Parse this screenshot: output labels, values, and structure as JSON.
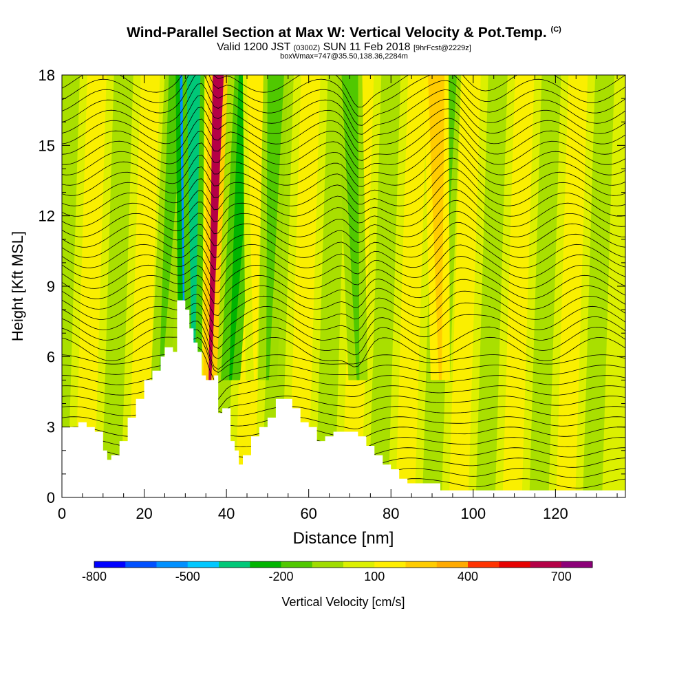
{
  "header": {
    "title": "Wind-Parallel Section at Max W: Vertical Velocity & Pot.Temp.",
    "copyright": "(C)",
    "valid_prefix": "Valid 1200 JST",
    "valid_utc": "(0300Z)",
    "valid_date": "SUN 11 Feb 2018",
    "forecast_info": "[9hrFcst@2229z]",
    "box_info": "boxWmax=747@35.50,138.36,2284m"
  },
  "chart_data": {
    "type": "heatmap",
    "title": "Wind-Parallel Section at Max W: Vertical Velocity & Pot.Temp.",
    "xlabel": "Distance [nm]",
    "ylabel": "Height [Kft MSL]",
    "xlim": [
      0,
      137
    ],
    "ylim": [
      0,
      18
    ],
    "xticks": [
      0,
      20,
      40,
      60,
      80,
      100,
      120
    ],
    "yticks": [
      0,
      3,
      6,
      9,
      12,
      15,
      18
    ],
    "colorbar": {
      "label": "Vertical Velocity [cm/s]",
      "tick_labels": [
        "-800",
        "-500",
        "-200",
        "100",
        "400",
        "700"
      ],
      "tick_values": [
        -800,
        -500,
        -200,
        100,
        400,
        700
      ],
      "range": [
        -800,
        800
      ],
      "step": 100,
      "colors": [
        "#0000ff",
        "#0050ff",
        "#0090ff",
        "#00c8ff",
        "#00e6c8",
        "#00c878",
        "#00b400",
        "#50c800",
        "#a0dc00",
        "#dcf000",
        "#ffee00",
        "#ffcc00",
        "#ffaa00",
        "#ff7800",
        "#ff3200",
        "#e60000",
        "#b40046",
        "#8c0078"
      ]
    },
    "terrain_kft": {
      "x": [
        0,
        2,
        4,
        6,
        8,
        10,
        11,
        12,
        14,
        16,
        18,
        20,
        22,
        24,
        25,
        26,
        27,
        28,
        29,
        30,
        31,
        32,
        33,
        34,
        35,
        36,
        37,
        38,
        39,
        40,
        41,
        42,
        43,
        44,
        46,
        48,
        50,
        52,
        54,
        56,
        58,
        60,
        62,
        64,
        66,
        68,
        70,
        72,
        74,
        76,
        78,
        80,
        82,
        84,
        86,
        88,
        90,
        92,
        94,
        96,
        98,
        100,
        104,
        108,
        112,
        116,
        120,
        124,
        128,
        132,
        137
      ],
      "h": [
        3.0,
        3.0,
        3.2,
        3.0,
        2.8,
        2.0,
        1.6,
        1.8,
        2.4,
        3.4,
        4.2,
        5.0,
        5.4,
        6.0,
        6.4,
        6.4,
        6.2,
        8.4,
        8.4,
        8.0,
        7.2,
        6.6,
        6.2,
        5.2,
        5.0,
        5.0,
        5.2,
        3.6,
        3.8,
        3.8,
        2.4,
        2.0,
        1.4,
        1.8,
        2.6,
        3.0,
        3.4,
        4.2,
        4.2,
        3.8,
        3.2,
        3.0,
        2.4,
        2.6,
        2.8,
        2.8,
        2.8,
        2.6,
        2.2,
        1.8,
        1.4,
        1.2,
        0.8,
        0.6,
        0.6,
        0.6,
        0.6,
        0.3,
        0.3,
        0.3,
        0.3,
        0.3,
        0.3,
        0.3,
        0.3,
        0.3,
        0.3,
        0.3,
        0.3,
        0.3,
        0.3
      ]
    },
    "vertical_velocity_bands": [
      {
        "x_top": 28,
        "x_bottom": 24,
        "w": -150
      },
      {
        "x_top": 30,
        "x_bottom": 30,
        "w": -600
      },
      {
        "x_top": 32,
        "x_bottom": 32,
        "w": -350
      },
      {
        "x_top": 38,
        "x_bottom": 36,
        "w": 650
      },
      {
        "x_top": 45,
        "x_bottom": 41,
        "w": -250
      },
      {
        "x_top": 47,
        "x_bottom": 47,
        "w": 150
      },
      {
        "x_top": 52,
        "x_bottom": 50,
        "w": -150
      },
      {
        "x_top": 70,
        "x_bottom": 72,
        "w": -200
      },
      {
        "x_top": 94,
        "x_bottom": 92,
        "w": -150
      },
      {
        "x_top": 91,
        "x_bottom": 92,
        "w": 250
      }
    ]
  }
}
